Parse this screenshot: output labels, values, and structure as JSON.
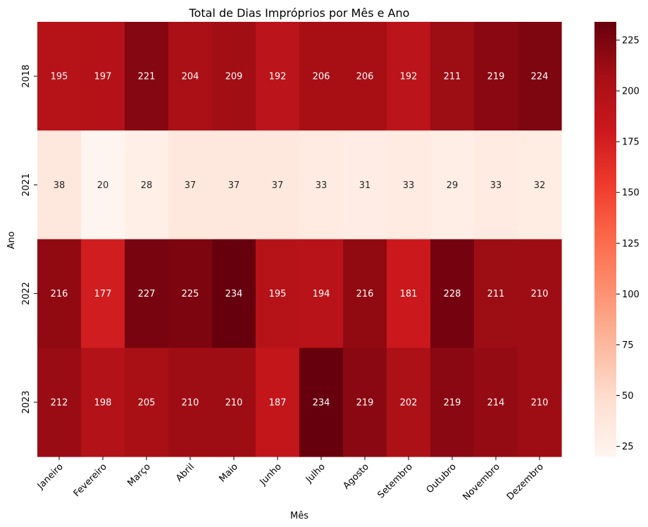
{
  "chart_data": {
    "type": "heatmap",
    "title": "Total de Dias Impróprios por Mês e Ano",
    "xlabel": "Mês",
    "ylabel": "Ano",
    "x_categories": [
      "Janeiro",
      "Fevereiro",
      "Março",
      "Abril",
      "Maio",
      "Junho",
      "Julho",
      "Agosto",
      "Setembro",
      "Outubro",
      "Novembro",
      "Dezembro"
    ],
    "y_categories": [
      "2018",
      "2021",
      "2022",
      "2023"
    ],
    "values": [
      [
        195,
        197,
        221,
        204,
        209,
        192,
        206,
        206,
        192,
        211,
        219,
        224
      ],
      [
        38,
        20,
        28,
        37,
        37,
        37,
        33,
        31,
        33,
        29,
        33,
        32
      ],
      [
        216,
        177,
        227,
        225,
        234,
        195,
        194,
        216,
        181,
        228,
        211,
        210
      ],
      [
        212,
        198,
        205,
        210,
        210,
        187,
        234,
        219,
        202,
        219,
        214,
        210
      ]
    ],
    "colormap": "Reds",
    "vmin": 20,
    "vmax": 234,
    "colorbar_ticks": [
      25,
      50,
      75,
      100,
      125,
      150,
      175,
      200,
      225
    ],
    "annotation_colors": {
      "dark": "#262626",
      "light": "#ffffff"
    }
  }
}
